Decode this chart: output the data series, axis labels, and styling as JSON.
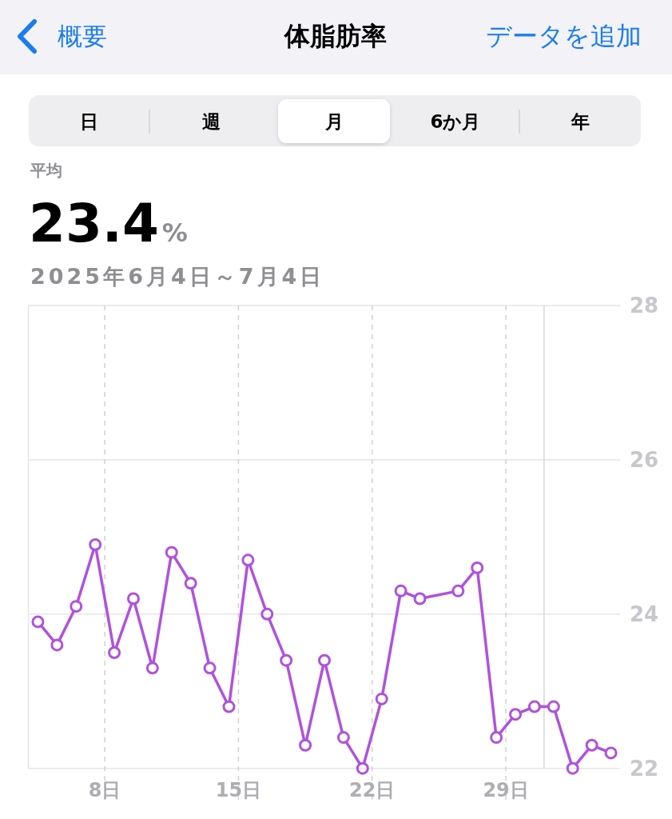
{
  "chart_data": {
    "type": "line",
    "title": "体脂肪率",
    "subtitle": "2025年6月4日～7月4日",
    "annotations": [
      "概要",
      "データを追加",
      "日",
      "週",
      "月",
      "6か月",
      "年",
      "平均",
      "23.4",
      "%"
    ],
    "series": [
      {
        "color": "#af52de",
        "x": [
          "2025-06-04T12:00",
          "2025-06-05T12:00",
          "2025-06-06T12:00",
          "2025-06-07T12:00",
          "2025-06-08T12:00",
          "2025-06-09T12:00",
          "2025-06-10T12:00",
          "2025-06-11T12:00",
          "2025-06-12T12:00",
          "2025-06-13T12:00",
          "2025-06-14T12:00",
          "2025-06-15T12:00",
          "2025-06-16T12:00",
          "2025-06-17T12:00",
          "2025-06-18T12:00",
          "2025-06-19T12:00",
          "2025-06-20T12:00",
          "2025-06-21T12:00",
          "2025-06-22T12:00",
          "2025-06-23T12:00",
          "2025-06-24T12:00",
          "2025-06-26T12:00",
          "2025-06-27T12:00",
          "2025-06-28T12:00",
          "2025-06-29T12:00",
          "2025-06-30T12:00",
          "2025-07-01T12:00",
          "2025-07-02T12:00",
          "2025-07-03T12:00",
          "2025-07-04T12:00"
        ],
        "values": [
          23.9,
          23.6,
          24.1,
          24.9,
          23.5,
          24.2,
          23.3,
          24.8,
          24.4,
          23.3,
          22.8,
          24.7,
          24.0,
          23.4,
          22.3,
          23.4,
          22.4,
          22.0,
          22.9,
          24.3,
          24.2,
          24.3,
          24.6,
          22.4,
          22.7,
          22.8,
          22.8,
          22.0,
          22.3,
          22.2
        ]
      }
    ],
    "xlim": [
      "2025-06-04",
      "2025-07-05"
    ],
    "xticks": [
      {
        "value": "2025-06-08",
        "label": "8日"
      },
      {
        "value": "2025-06-15",
        "label": "15日"
      },
      {
        "value": "2025-06-22",
        "label": "22日"
      },
      {
        "value": "2025-06-29",
        "label": "29日"
      }
    ],
    "ylim": [
      22,
      28
    ],
    "yticks": [
      22,
      24,
      26,
      28
    ],
    "grid": true,
    "marker": "circle",
    "line_style": "solid",
    "ref_lines": [
      {
        "axis": "x",
        "value": "2025-07-01",
        "line_style": "solid"
      }
    ]
  }
}
